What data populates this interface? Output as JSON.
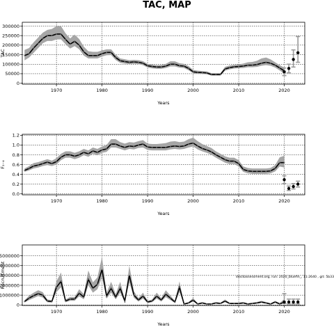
{
  "figure": {
    "title": "TAC, MAP"
  },
  "chart_data": [
    {
      "type": "line",
      "title": "",
      "xlabel": "Years",
      "ylabel": "TAC",
      "xlim": [
        1962.5,
        2024.5
      ],
      "ylim": [
        -5000,
        320000
      ],
      "xticks": [
        1970,
        1980,
        1990,
        2000,
        2010,
        2020
      ],
      "yticks": [
        0,
        50000,
        100000,
        150000,
        200000,
        250000,
        300000
      ],
      "grid": true,
      "series": [
        {
          "x": [
            1963,
            1964,
            1965,
            1966,
            1967,
            1968,
            1969,
            1970,
            1971,
            1972,
            1973,
            1974,
            1975,
            1976,
            1977,
            1978,
            1979,
            1980,
            1981,
            1982,
            1983,
            1984,
            1985,
            1986,
            1987,
            1988,
            1989,
            1990,
            1991,
            1992,
            1993,
            1994,
            1995,
            1996,
            1997,
            1998,
            1999,
            2000,
            2001,
            2002,
            2003,
            2004,
            2005,
            2006,
            2007,
            2008,
            2009,
            2010,
            2011,
            2012,
            2013,
            2014,
            2015,
            2016,
            2017,
            2018,
            2019,
            2020
          ],
          "y": [
            145000,
            155000,
            185000,
            210000,
            235000,
            250000,
            250000,
            258000,
            258000,
            230000,
            205000,
            220000,
            200000,
            165000,
            145000,
            145000,
            145000,
            155000,
            162000,
            162000,
            135000,
            118000,
            114000,
            110000,
            112000,
            110000,
            105000,
            92000,
            88000,
            85000,
            85000,
            90000,
            100000,
            100000,
            92000,
            90000,
            78000,
            60000,
            57000,
            56000,
            54000,
            46000,
            46000,
            46000,
            75000,
            82000,
            86000,
            88000,
            90000,
            95000,
            95000,
            98000,
            105000,
            110000,
            105000,
            95000,
            80000,
            65000
          ],
          "lower": [
            120000,
            135000,
            160000,
            185000,
            210000,
            222000,
            222000,
            230000,
            230000,
            205000,
            182000,
            195000,
            178000,
            145000,
            130000,
            130000,
            130000,
            140000,
            147000,
            148000,
            122000,
            107000,
            103000,
            100000,
            102000,
            100000,
            95000,
            82000,
            78000,
            76000,
            76000,
            80000,
            88000,
            88000,
            82000,
            80000,
            68000,
            52000,
            50000,
            49000,
            47000,
            40000,
            40000,
            40000,
            66000,
            73000,
            77000,
            79000,
            80000,
            84000,
            84000,
            86000,
            92000,
            95000,
            92000,
            82000,
            67000,
            50000
          ],
          "upper": [
            175000,
            185000,
            215000,
            240000,
            265000,
            280000,
            285000,
            300000,
            300000,
            262000,
            235000,
            255000,
            232000,
            192000,
            168000,
            165000,
            165000,
            172000,
            178000,
            178000,
            150000,
            130000,
            126000,
            121000,
            123000,
            121000,
            116000,
            102000,
            98000,
            95000,
            96000,
            102000,
            115000,
            115000,
            105000,
            102000,
            90000,
            70000,
            66000,
            64000,
            62000,
            53000,
            53000,
            53000,
            86000,
            93000,
            97000,
            99000,
            103000,
            110000,
            112000,
            118000,
            130000,
            135000,
            125000,
            110000,
            95000,
            82000
          ]
        }
      ],
      "points": [
        {
          "x": 2020,
          "y": 60000,
          "low": 40000,
          "high": 80000
        },
        {
          "x": 2021,
          "y": 78000,
          "low": 55000,
          "high": 100000
        },
        {
          "x": 2022,
          "y": 125000,
          "low": 85000,
          "high": 175000
        },
        {
          "x": 2023,
          "y": 160000,
          "low": 110000,
          "high": 245000
        }
      ]
    },
    {
      "type": "line",
      "title": "",
      "xlabel": "Years",
      "ylabel": "F₂₋₄",
      "xlim": [
        1962.5,
        2024.5
      ],
      "ylim": [
        -0.02,
        1.22
      ],
      "xticks": [
        1970,
        1980,
        1990,
        2000,
        2010,
        2020
      ],
      "yticks": [
        0.0,
        0.2,
        0.4,
        0.6,
        0.8,
        1.0,
        1.2
      ],
      "grid": true,
      "series": [
        {
          "x": [
            1963,
            1964,
            1965,
            1966,
            1967,
            1968,
            1969,
            1970,
            1971,
            1972,
            1973,
            1974,
            1975,
            1976,
            1977,
            1978,
            1979,
            1980,
            1981,
            1982,
            1983,
            1984,
            1985,
            1986,
            1987,
            1988,
            1989,
            1990,
            1991,
            1992,
            1993,
            1994,
            1995,
            1996,
            1997,
            1998,
            1999,
            2000,
            2001,
            2002,
            2003,
            2004,
            2005,
            2006,
            2007,
            2008,
            2009,
            2010,
            2011,
            2012,
            2013,
            2014,
            2015,
            2016,
            2017,
            2018,
            2019,
            2020
          ],
          "y": [
            0.48,
            0.52,
            0.57,
            0.59,
            0.62,
            0.65,
            0.62,
            0.66,
            0.75,
            0.8,
            0.8,
            0.77,
            0.8,
            0.85,
            0.82,
            0.88,
            0.85,
            0.9,
            0.92,
            1.02,
            1.02,
            0.98,
            0.95,
            0.98,
            0.97,
            1.0,
            1.02,
            0.96,
            0.95,
            0.95,
            0.95,
            0.95,
            0.97,
            0.98,
            0.97,
            0.98,
            1.02,
            1.04,
            0.98,
            0.93,
            0.9,
            0.86,
            0.8,
            0.75,
            0.7,
            0.67,
            0.67,
            0.62,
            0.5,
            0.47,
            0.46,
            0.46,
            0.46,
            0.46,
            0.47,
            0.52,
            0.64,
            0.64
          ],
          "lower": [
            0.45,
            0.48,
            0.52,
            0.54,
            0.57,
            0.59,
            0.57,
            0.6,
            0.69,
            0.74,
            0.74,
            0.71,
            0.74,
            0.79,
            0.76,
            0.82,
            0.79,
            0.84,
            0.86,
            0.95,
            0.95,
            0.92,
            0.89,
            0.92,
            0.91,
            0.94,
            0.95,
            0.9,
            0.89,
            0.89,
            0.89,
            0.89,
            0.91,
            0.92,
            0.91,
            0.92,
            0.95,
            0.97,
            0.91,
            0.87,
            0.84,
            0.8,
            0.74,
            0.69,
            0.64,
            0.61,
            0.61,
            0.56,
            0.45,
            0.42,
            0.41,
            0.41,
            0.41,
            0.41,
            0.42,
            0.46,
            0.56,
            0.54
          ],
          "upper": [
            0.52,
            0.57,
            0.63,
            0.65,
            0.68,
            0.71,
            0.68,
            0.73,
            0.82,
            0.87,
            0.87,
            0.84,
            0.87,
            0.92,
            0.89,
            0.95,
            0.92,
            0.97,
            1.0,
            1.12,
            1.12,
            1.06,
            1.03,
            1.06,
            1.05,
            1.08,
            1.1,
            1.03,
            1.02,
            1.02,
            1.03,
            1.04,
            1.07,
            1.08,
            1.06,
            1.07,
            1.12,
            1.15,
            1.08,
            1.02,
            0.98,
            0.94,
            0.87,
            0.82,
            0.77,
            0.74,
            0.74,
            0.69,
            0.56,
            0.53,
            0.52,
            0.52,
            0.52,
            0.52,
            0.53,
            0.59,
            0.75,
            0.78
          ]
        }
      ],
      "points": [
        {
          "x": 2020,
          "y": 0.29,
          "low": 0.21,
          "high": 0.37
        },
        {
          "x": 2021,
          "y": 0.11,
          "low": 0.07,
          "high": 0.16
        },
        {
          "x": 2022,
          "y": 0.15,
          "low": 0.1,
          "high": 0.21
        },
        {
          "x": 2023,
          "y": 0.2,
          "low": 0.14,
          "high": 0.26
        }
      ]
    },
    {
      "type": "line",
      "title": "",
      "xlabel": "Years",
      "ylabel": "Recruitment",
      "xlim": [
        1962.5,
        2024.5
      ],
      "ylim": [
        -50000,
        6100000
      ],
      "xticks": [
        1970,
        1980,
        1990,
        2000,
        2010,
        2020
      ],
      "yticks": [
        0,
        1000000,
        2000000,
        3000000,
        4000000,
        5000000
      ],
      "ytick_labels": [
        "0",
        "1000000",
        "2000000",
        "3000000",
        "4000000",
        "5000000"
      ],
      "grid": true,
      "annotation": "stockassessment.org, run: 2020_bluefin_, 11:2640 , git: 5b33",
      "series": [
        {
          "x": [
            1963,
            1964,
            1965,
            1966,
            1967,
            1968,
            1969,
            1970,
            1971,
            1972,
            1973,
            1974,
            1975,
            1976,
            1977,
            1978,
            1979,
            1980,
            1981,
            1982,
            1983,
            1984,
            1985,
            1986,
            1987,
            1988,
            1989,
            1990,
            1991,
            1992,
            1993,
            1994,
            1995,
            1996,
            1997,
            1998,
            1999,
            2000,
            2001,
            2002,
            2003,
            2004,
            2005,
            2006,
            2007,
            2008,
            2009,
            2010,
            2011,
            2012,
            2013,
            2014,
            2015,
            2016,
            2017,
            2018,
            2019,
            2020
          ],
          "y": [
            350000,
            700000,
            950000,
            1150000,
            1000000,
            400000,
            350000,
            1800000,
            2400000,
            400000,
            600000,
            600000,
            1200000,
            800000,
            2600000,
            1700000,
            2100000,
            3600000,
            900000,
            1700000,
            800000,
            1700000,
            400000,
            3000000,
            1000000,
            500000,
            900000,
            300000,
            400000,
            900000,
            500000,
            1100000,
            700000,
            300000,
            1800000,
            100000,
            200000,
            500000,
            100000,
            200000,
            100000,
            100000,
            200000,
            150000,
            400000,
            150000,
            150000,
            150000,
            200000,
            100000,
            150000,
            200000,
            300000,
            200000,
            100000,
            300000,
            100000,
            300000
          ],
          "lower": [
            250000,
            500000,
            700000,
            900000,
            750000,
            280000,
            250000,
            1300000,
            1800000,
            280000,
            430000,
            430000,
            880000,
            580000,
            2000000,
            1250000,
            1600000,
            2800000,
            650000,
            1250000,
            580000,
            1250000,
            280000,
            2300000,
            730000,
            360000,
            650000,
            210000,
            290000,
            650000,
            360000,
            800000,
            500000,
            210000,
            1300000,
            60000,
            130000,
            360000,
            60000,
            130000,
            60000,
            60000,
            130000,
            100000,
            290000,
            100000,
            100000,
            100000,
            130000,
            60000,
            100000,
            130000,
            210000,
            130000,
            60000,
            200000,
            50000,
            150000
          ],
          "upper": [
            480000,
            950000,
            1250000,
            1500000,
            1300000,
            560000,
            490000,
            2400000,
            3300000,
            560000,
            820000,
            820000,
            1600000,
            1100000,
            3500000,
            2300000,
            2800000,
            4900000,
            1250000,
            2350000,
            1100000,
            2350000,
            560000,
            4000000,
            1400000,
            700000,
            1250000,
            420000,
            560000,
            1250000,
            700000,
            1500000,
            970000,
            420000,
            2400000,
            160000,
            300000,
            700000,
            160000,
            300000,
            160000,
            160000,
            300000,
            230000,
            560000,
            230000,
            230000,
            230000,
            300000,
            160000,
            230000,
            300000,
            420000,
            300000,
            160000,
            420000,
            200000,
            600000
          ]
        }
      ],
      "points": [
        {
          "x": 2020,
          "y": 300000,
          "low": 150000,
          "high": 1150000
        },
        {
          "x": 2021,
          "y": 300000,
          "low": 100000,
          "high": 600000
        },
        {
          "x": 2022,
          "y": 300000,
          "low": 100000,
          "high": 600000
        },
        {
          "x": 2023,
          "y": 300000,
          "low": 100000,
          "high": 600000
        }
      ]
    }
  ]
}
